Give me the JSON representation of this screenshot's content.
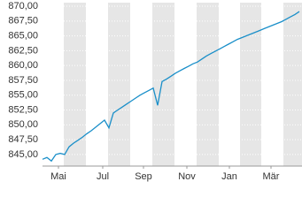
{
  "chart_data": {
    "type": "line",
    "x": [
      0,
      1,
      2,
      3,
      4,
      5,
      6,
      7,
      8,
      9,
      10,
      11,
      12,
      13,
      14,
      15,
      16,
      17,
      18,
      19,
      20,
      21,
      22,
      23,
      24,
      25,
      26,
      27,
      28,
      29,
      30,
      31,
      32,
      33,
      34,
      35,
      36,
      37,
      38,
      39,
      40,
      41,
      42,
      43,
      44,
      45,
      46,
      47,
      48,
      49,
      50,
      51,
      52,
      53,
      54,
      55,
      56,
      57,
      58
    ],
    "values": [
      844.2,
      844.5,
      843.9,
      845.0,
      845.2,
      845.0,
      846.3,
      846.9,
      847.4,
      847.9,
      848.5,
      849.0,
      849.6,
      850.2,
      850.8,
      849.5,
      852.0,
      852.5,
      853.0,
      853.5,
      854.0,
      854.5,
      855.0,
      855.4,
      855.8,
      856.2,
      853.3,
      857.3,
      857.7,
      858.2,
      858.7,
      859.1,
      859.5,
      859.9,
      860.3,
      860.6,
      861.1,
      861.6,
      862.0,
      862.4,
      862.8,
      863.2,
      863.6,
      864.0,
      864.4,
      864.7,
      865.0,
      865.3,
      865.6,
      865.9,
      866.2,
      866.5,
      866.8,
      867.1,
      867.4,
      867.8,
      868.2,
      868.6,
      869.1
    ],
    "color": "#1a8fc9",
    "xlim": [
      0,
      58.6
    ],
    "xticks": [
      {
        "value": 3.6,
        "label": "Mai"
      },
      {
        "value": 13.6,
        "label": "Jul"
      },
      {
        "value": 22.8,
        "label": "Sep"
      },
      {
        "value": 32.6,
        "label": "Nov"
      },
      {
        "value": 42.2,
        "label": "Jan"
      },
      {
        "value": 51.6,
        "label": "Mär"
      }
    ],
    "ylim": [
      843.05,
      870.6
    ],
    "yticks": [
      {
        "value": 845,
        "label": "845,00"
      },
      {
        "value": 847.5,
        "label": "847,50"
      },
      {
        "value": 850,
        "label": "850,00"
      },
      {
        "value": 852.5,
        "label": "852,50"
      },
      {
        "value": 855,
        "label": "855,00"
      },
      {
        "value": 857.5,
        "label": "857,50"
      },
      {
        "value": 860,
        "label": "860,00"
      },
      {
        "value": 862.5,
        "label": "862,50"
      },
      {
        "value": 865,
        "label": "865,00"
      },
      {
        "value": 867.5,
        "label": "867,50"
      },
      {
        "value": 870,
        "label": "870,00"
      }
    ],
    "grid": true
  }
}
